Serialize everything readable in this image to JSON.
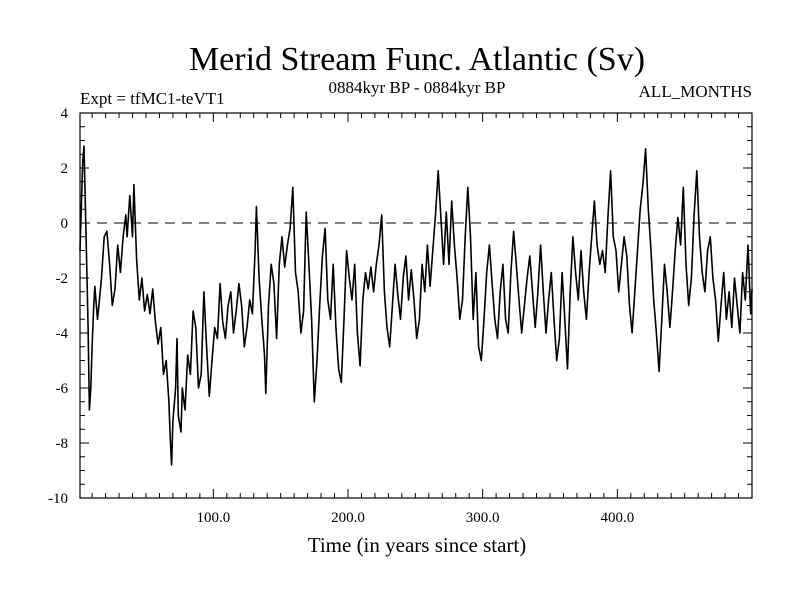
{
  "chart_data": {
    "type": "line",
    "title": "Merid Stream Func. Atlantic (Sv)",
    "subtitle_left": "Expt = tfMC1-teVT1",
    "subtitle_center": "0884kyr BP - 0884kyr BP",
    "subtitle_right": "ALL_MONTHS",
    "xlabel": "Time (in years since start)",
    "ylabel": "",
    "xlim": [
      1,
      500
    ],
    "ylim": [
      -10,
      4
    ],
    "x_ticks": [
      100,
      200,
      300,
      400
    ],
    "x_tick_labels": [
      "100.0",
      "200.0",
      "300.0",
      "400.0"
    ],
    "y_ticks": [
      4,
      2,
      0,
      -2,
      -4,
      -6,
      -8,
      -10
    ],
    "y_tick_labels": [
      "4",
      "2",
      "0",
      "-2",
      "-4",
      "-6",
      "-8",
      "-10"
    ],
    "reference_line": {
      "y": 0,
      "style": "dashed"
    },
    "series": [
      {
        "name": "Merid Stream Func. Atlantic",
        "color": "#000000",
        "points": [
          [
            1,
            -1.0
          ],
          [
            3,
            2.2
          ],
          [
            4,
            2.8
          ],
          [
            6,
            -1.5
          ],
          [
            7,
            -3.8
          ],
          [
            8,
            -6.8
          ],
          [
            9,
            -6.0
          ],
          [
            10,
            -4.5
          ],
          [
            11,
            -3.2
          ],
          [
            12,
            -2.3
          ],
          [
            14,
            -3.5
          ],
          [
            15,
            -3.0
          ],
          [
            17,
            -2.0
          ],
          [
            19,
            -0.5
          ],
          [
            21,
            -0.3
          ],
          [
            23,
            -1.5
          ],
          [
            25,
            -3.0
          ],
          [
            27,
            -2.4
          ],
          [
            29,
            -0.8
          ],
          [
            31,
            -1.8
          ],
          [
            33,
            -0.5
          ],
          [
            35,
            0.3
          ],
          [
            36,
            -0.5
          ],
          [
            38,
            1.0
          ],
          [
            40,
            -0.5
          ],
          [
            41,
            1.4
          ],
          [
            43,
            -1.3
          ],
          [
            45,
            -2.8
          ],
          [
            47,
            -2.0
          ],
          [
            49,
            -3.2
          ],
          [
            51,
            -2.6
          ],
          [
            53,
            -3.3
          ],
          [
            55,
            -2.4
          ],
          [
            57,
            -3.6
          ],
          [
            59,
            -4.4
          ],
          [
            61,
            -3.8
          ],
          [
            63,
            -5.5
          ],
          [
            65,
            -5.0
          ],
          [
            67,
            -6.5
          ],
          [
            68,
            -7.8
          ],
          [
            69,
            -8.8
          ],
          [
            70,
            -7.2
          ],
          [
            72,
            -6.0
          ],
          [
            73,
            -4.2
          ],
          [
            74,
            -7.0
          ],
          [
            76,
            -7.6
          ],
          [
            77,
            -6.0
          ],
          [
            79,
            -6.8
          ],
          [
            81,
            -4.8
          ],
          [
            83,
            -5.5
          ],
          [
            85,
            -3.2
          ],
          [
            87,
            -3.8
          ],
          [
            89,
            -6.0
          ],
          [
            91,
            -5.5
          ],
          [
            93,
            -2.5
          ],
          [
            95,
            -4.5
          ],
          [
            97,
            -6.3
          ],
          [
            99,
            -5.0
          ],
          [
            101,
            -3.8
          ],
          [
            103,
            -4.2
          ],
          [
            105,
            -2.2
          ],
          [
            107,
            -3.6
          ],
          [
            109,
            -4.2
          ],
          [
            111,
            -3.0
          ],
          [
            113,
            -2.5
          ],
          [
            115,
            -4.0
          ],
          [
            117,
            -3.2
          ],
          [
            119,
            -2.2
          ],
          [
            121,
            -3.0
          ],
          [
            123,
            -4.5
          ],
          [
            125,
            -3.8
          ],
          [
            127,
            -2.8
          ],
          [
            129,
            -3.3
          ],
          [
            131,
            -1.0
          ],
          [
            132,
            0.6
          ],
          [
            134,
            -2.0
          ],
          [
            136,
            -3.5
          ],
          [
            138,
            -4.8
          ],
          [
            139,
            -6.2
          ],
          [
            141,
            -3.0
          ],
          [
            143,
            -1.5
          ],
          [
            145,
            -2.2
          ],
          [
            147,
            -4.2
          ],
          [
            149,
            -1.5
          ],
          [
            151,
            -0.5
          ],
          [
            153,
            -1.6
          ],
          [
            155,
            -0.8
          ],
          [
            157,
            -0.2
          ],
          [
            159,
            1.3
          ],
          [
            161,
            -1.8
          ],
          [
            163,
            -2.5
          ],
          [
            165,
            -4.0
          ],
          [
            167,
            -3.2
          ],
          [
            169,
            0.4
          ],
          [
            171,
            -1.5
          ],
          [
            173,
            -3.5
          ],
          [
            175,
            -6.5
          ],
          [
            177,
            -5.0
          ],
          [
            179,
            -3.0
          ],
          [
            181,
            -1.2
          ],
          [
            183,
            -0.2
          ],
          [
            185,
            -2.8
          ],
          [
            187,
            -3.5
          ],
          [
            189,
            -1.5
          ],
          [
            191,
            -3.8
          ],
          [
            193,
            -5.3
          ],
          [
            195,
            -5.8
          ],
          [
            197,
            -3.5
          ],
          [
            199,
            -1.0
          ],
          [
            201,
            -2.0
          ],
          [
            203,
            -2.8
          ],
          [
            205,
            -1.5
          ],
          [
            207,
            -4.0
          ],
          [
            209,
            -5.2
          ],
          [
            211,
            -2.8
          ],
          [
            213,
            -1.8
          ],
          [
            215,
            -2.4
          ],
          [
            217,
            -1.6
          ],
          [
            219,
            -2.5
          ],
          [
            221,
            -1.5
          ],
          [
            223,
            -0.8
          ],
          [
            225,
            0.3
          ],
          [
            227,
            -2.5
          ],
          [
            229,
            -3.8
          ],
          [
            231,
            -4.5
          ],
          [
            233,
            -3.0
          ],
          [
            235,
            -1.5
          ],
          [
            237,
            -2.6
          ],
          [
            239,
            -3.5
          ],
          [
            241,
            -2.0
          ],
          [
            243,
            -1.2
          ],
          [
            245,
            -2.8
          ],
          [
            247,
            -1.7
          ],
          [
            249,
            -2.8
          ],
          [
            251,
            -4.2
          ],
          [
            253,
            -3.5
          ],
          [
            255,
            -1.5
          ],
          [
            257,
            -2.5
          ],
          [
            259,
            -0.8
          ],
          [
            261,
            -2.3
          ],
          [
            263,
            -1.0
          ],
          [
            265,
            0.3
          ],
          [
            267,
            1.9
          ],
          [
            269,
            0.2
          ],
          [
            271,
            -1.5
          ],
          [
            273,
            0.4
          ],
          [
            275,
            -1.5
          ],
          [
            277,
            0.8
          ],
          [
            279,
            -0.8
          ],
          [
            281,
            -2.0
          ],
          [
            283,
            -3.5
          ],
          [
            285,
            -2.8
          ],
          [
            287,
            -0.5
          ],
          [
            289,
            1.3
          ],
          [
            291,
            -0.5
          ],
          [
            293,
            -3.5
          ],
          [
            295,
            -1.8
          ],
          [
            297,
            -4.5
          ],
          [
            299,
            -5.0
          ],
          [
            301,
            -3.5
          ],
          [
            303,
            -1.8
          ],
          [
            305,
            -0.8
          ],
          [
            307,
            -2.2
          ],
          [
            309,
            -3.5
          ],
          [
            311,
            -4.2
          ],
          [
            313,
            -2.5
          ],
          [
            315,
            -1.5
          ],
          [
            317,
            -3.5
          ],
          [
            319,
            -4.0
          ],
          [
            321,
            -1.8
          ],
          [
            323,
            -0.3
          ],
          [
            325,
            -1.5
          ],
          [
            327,
            -2.8
          ],
          [
            329,
            -4.0
          ],
          [
            331,
            -3.0
          ],
          [
            333,
            -2.0
          ],
          [
            335,
            -1.2
          ],
          [
            337,
            -2.5
          ],
          [
            339,
            -3.8
          ],
          [
            341,
            -2.5
          ],
          [
            343,
            -0.8
          ],
          [
            345,
            -2.5
          ],
          [
            347,
            -4.0
          ],
          [
            349,
            -2.8
          ],
          [
            351,
            -1.8
          ],
          [
            353,
            -3.5
          ],
          [
            355,
            -5.0
          ],
          [
            357,
            -4.2
          ],
          [
            359,
            -1.8
          ],
          [
            361,
            -3.5
          ],
          [
            363,
            -5.3
          ],
          [
            365,
            -2.5
          ],
          [
            367,
            -0.5
          ],
          [
            369,
            -1.8
          ],
          [
            371,
            -2.8
          ],
          [
            373,
            -1.0
          ],
          [
            375,
            -2.5
          ],
          [
            377,
            -3.5
          ],
          [
            379,
            -1.8
          ],
          [
            381,
            -0.5
          ],
          [
            383,
            0.8
          ],
          [
            385,
            -0.8
          ],
          [
            387,
            -1.5
          ],
          [
            389,
            -1.0
          ],
          [
            391,
            -1.8
          ],
          [
            393,
            0.2
          ],
          [
            395,
            1.9
          ],
          [
            397,
            -0.5
          ],
          [
            399,
            -1.0
          ],
          [
            401,
            -2.5
          ],
          [
            403,
            -1.5
          ],
          [
            405,
            -0.5
          ],
          [
            407,
            -1.2
          ],
          [
            409,
            -3.0
          ],
          [
            411,
            -4.0
          ],
          [
            413,
            -2.5
          ],
          [
            415,
            -1.0
          ],
          [
            417,
            0.5
          ],
          [
            419,
            1.4
          ],
          [
            421,
            2.7
          ],
          [
            423,
            0.5
          ],
          [
            425,
            -1.0
          ],
          [
            427,
            -2.8
          ],
          [
            429,
            -4.0
          ],
          [
            431,
            -5.4
          ],
          [
            433,
            -3.5
          ],
          [
            435,
            -1.5
          ],
          [
            437,
            -2.5
          ],
          [
            439,
            -3.8
          ],
          [
            441,
            -2.5
          ],
          [
            443,
            -1.0
          ],
          [
            445,
            0.2
          ],
          [
            447,
            -0.8
          ],
          [
            449,
            1.3
          ],
          [
            451,
            -1.5
          ],
          [
            453,
            -3.0
          ],
          [
            455,
            -2.0
          ],
          [
            457,
            0.3
          ],
          [
            459,
            1.9
          ],
          [
            461,
            -0.5
          ],
          [
            463,
            -1.8
          ],
          [
            465,
            -2.5
          ],
          [
            467,
            -1.0
          ],
          [
            469,
            -0.5
          ],
          [
            471,
            -2.0
          ],
          [
            473,
            -2.8
          ],
          [
            475,
            -4.3
          ],
          [
            477,
            -3.0
          ],
          [
            479,
            -1.8
          ],
          [
            481,
            -3.5
          ],
          [
            483,
            -2.5
          ],
          [
            485,
            -3.8
          ],
          [
            487,
            -2.0
          ],
          [
            489,
            -3.0
          ],
          [
            491,
            -4.0
          ],
          [
            493,
            -1.8
          ],
          [
            495,
            -2.8
          ],
          [
            497,
            -0.8
          ],
          [
            499,
            -3.3
          ],
          [
            500,
            -2.4
          ]
        ]
      }
    ]
  }
}
